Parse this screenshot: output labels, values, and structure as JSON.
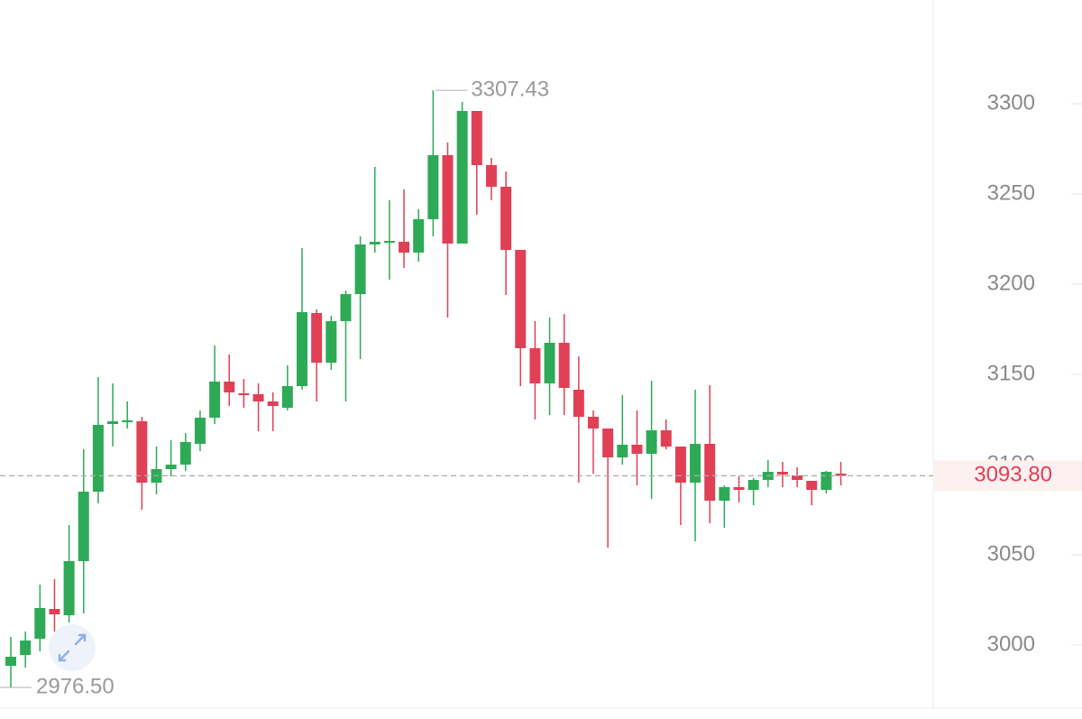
{
  "chart_data": {
    "type": "candlestick",
    "up_color": "#2eaa57",
    "down_color": "#e04055",
    "open": [
      2988.5,
      2994.5,
      3003.5,
      3020,
      3016.5,
      3046.5,
      3085,
      3122.5,
      3124,
      3124,
      3090,
      3097.5,
      3100,
      3111.5,
      3126,
      3146,
      3139.5,
      3139,
      3135,
      3131.5,
      3143.5,
      3184,
      3156.5,
      3179.5,
      3194.5,
      3222,
      3223.5,
      3223.5,
      3217.5,
      3236,
      3271.5,
      3222.5,
      3296,
      3266,
      3254,
      3219,
      3164.5,
      3145,
      3167.5,
      3141.5,
      3126.5,
      3120,
      3104,
      3111,
      3106,
      3119,
      3110,
      3090,
      3111.5,
      3080,
      3087.5,
      3086,
      3091.5,
      3096,
      3094,
      3091,
      3086,
      3095
    ],
    "high": [
      3004.5,
      3007.5,
      3033.5,
      3036.5,
      3066.5,
      3108.5,
      3148.5,
      3145,
      3135,
      3126.5,
      3110,
      3113.5,
      3117.5,
      3130,
      3166,
      3161,
      3147.5,
      3145,
      3140,
      3155,
      3220,
      3186,
      3182.5,
      3196.5,
      3226.5,
      3265,
      3246.5,
      3252.5,
      3241.5,
      3307.43,
      3278.5,
      3301,
      3296,
      3270,
      3262.5,
      3219,
      3179.5,
      3181.5,
      3183.5,
      3160,
      3130,
      3120,
      3138.5,
      3130,
      3146.5,
      3125,
      3110,
      3141.5,
      3144,
      3088.5,
      3093.5,
      3092.5,
      3102.5,
      3101.5,
      3098.5,
      3091,
      3096.5,
      3101.5
    ],
    "low": [
      2976.5,
      2987.5,
      2996.5,
      3007.5,
      3012.5,
      3017.5,
      3078.5,
      3110,
      3120,
      3075,
      3083.5,
      3093.5,
      3096.5,
      3107.5,
      3122.5,
      3132.5,
      3131.5,
      3118.5,
      3118.5,
      3130,
      3141.5,
      3135,
      3152.5,
      3135,
      3158.5,
      3217.5,
      3202.5,
      3209,
      3212.5,
      3226.5,
      3181.5,
      3222.5,
      3238.5,
      3246.5,
      3194,
      3143.5,
      3125,
      3127.5,
      3127.5,
      3090,
      3095,
      3054,
      3100,
      3088.5,
      3081,
      3108.5,
      3066.5,
      3057.5,
      3067.5,
      3065,
      3079,
      3077.5,
      3087.5,
      3087.5,
      3087.5,
      3077.5,
      3084,
      3088.5
    ],
    "close": [
      2993.5,
      3002.5,
      3020.5,
      3017,
      3046.5,
      3085,
      3122,
      3124,
      3124.5,
      3090,
      3097.5,
      3100,
      3112.5,
      3126,
      3146,
      3140,
      3139,
      3135,
      3132.5,
      3143.5,
      3184.5,
      3156.5,
      3179.5,
      3194.5,
      3222,
      3223.5,
      3224,
      3217.5,
      3236,
      3271.5,
      3222.5,
      3296,
      3266,
      3254,
      3219,
      3164.5,
      3145,
      3167.5,
      3142.5,
      3126.5,
      3120,
      3104,
      3111,
      3106,
      3119,
      3110,
      3090,
      3111.5,
      3080,
      3087.5,
      3086,
      3091.5,
      3096,
      3094.5,
      3091.5,
      3086,
      3096,
      3093.8
    ],
    "ylim": [
      2965,
      3357.5
    ],
    "yticks": [
      3000,
      3050,
      3100,
      3150,
      3200,
      3250,
      3300
    ],
    "max_marker": 3307.43,
    "min_marker": {
      "value": 2976.5,
      "label": "2976.50"
    },
    "last_price": {
      "value": 3093.8,
      "label": "3093.80"
    }
  }
}
